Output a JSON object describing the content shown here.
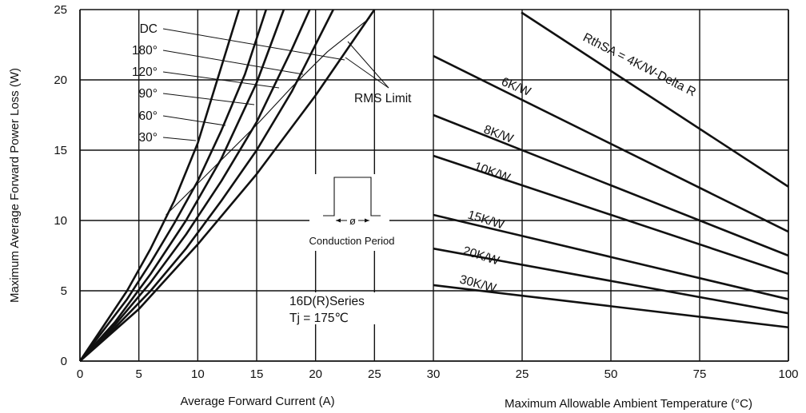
{
  "chart_data": {
    "type": "line",
    "y_axis": {
      "label": "Maximum Average Forward Power Loss (W)",
      "range": [
        0,
        25
      ],
      "ticks": [
        0,
        5,
        10,
        15,
        20,
        25
      ]
    },
    "left_panel": {
      "xlabel": "Average Forward Current (A)",
      "xlim": [
        0,
        30
      ],
      "xticks": [
        0,
        5,
        10,
        15,
        20,
        25,
        30
      ],
      "series": [
        {
          "name": "30°",
          "x": [
            0,
            2,
            4,
            6,
            8,
            10,
            13.5
          ],
          "y": [
            0,
            2.5,
            5.0,
            8.0,
            11.4,
            15.5,
            25.0
          ]
        },
        {
          "name": "60°",
          "x": [
            0,
            2,
            4,
            6,
            8,
            10,
            12,
            14,
            15.8
          ],
          "y": [
            0,
            2.2,
            4.4,
            7.0,
            9.8,
            12.8,
            16.4,
            20.4,
            25.0
          ]
        },
        {
          "name": "90°",
          "x": [
            0,
            3,
            6,
            9,
            12,
            15,
            17.3
          ],
          "y": [
            0,
            2.8,
            6.2,
            10.0,
            14.4,
            19.8,
            25.0
          ]
        },
        {
          "name": "120°",
          "x": [
            0,
            3,
            6,
            9,
            12,
            15,
            18,
            19.5
          ],
          "y": [
            0,
            2.6,
            5.6,
            9.0,
            12.8,
            17.0,
            22.2,
            25.0
          ]
        },
        {
          "name": "180°",
          "x": [
            0,
            3,
            6,
            9,
            12,
            15,
            18,
            21.5
          ],
          "y": [
            0,
            2.4,
            5.0,
            8.0,
            11.4,
            15.0,
            19.2,
            25.0
          ]
        },
        {
          "name": "DC",
          "x": [
            0,
            5,
            10,
            15,
            20,
            25
          ],
          "y": [
            0,
            3.7,
            8.3,
            13.3,
            18.9,
            25.0
          ]
        }
      ],
      "rms_limit": {
        "name": "RMS Limit",
        "x": [
          7.3,
          9,
          12,
          15,
          18,
          21,
          24.6
        ],
        "y": [
          10.4,
          11.8,
          14.3,
          16.8,
          19.5,
          22.0,
          24.4
        ]
      },
      "inset_label": "Conduction Period",
      "inset_symbol": "ø",
      "series_label": "16D(R)Series",
      "tj_label": "Tj = 175℃"
    },
    "right_panel": {
      "xlabel": "Maximum Allowable Ambient Temperature (°C)",
      "xticks": [
        "30",
        "25",
        "50",
        "75",
        "100"
      ],
      "lines": [
        {
          "name": "RthSA = 4K/W-Delta R",
          "y_start": 24.8,
          "y_end": 12.4
        },
        {
          "name": "6K/W",
          "y_start": 21.7,
          "y_end": 9.2
        },
        {
          "name": "8K/W",
          "y_start": 17.5,
          "y_end": 7.5
        },
        {
          "name": "10K/W",
          "y_start": 14.6,
          "y_end": 6.2
        },
        {
          "name": "15K/W",
          "y_start": 10.4,
          "y_end": 4.4
        },
        {
          "name": "20K/W",
          "y_start": 8.0,
          "y_end": 3.4
        },
        {
          "name": "30K/W",
          "y_start": 5.4,
          "y_end": 2.4
        }
      ]
    },
    "grid": true
  }
}
